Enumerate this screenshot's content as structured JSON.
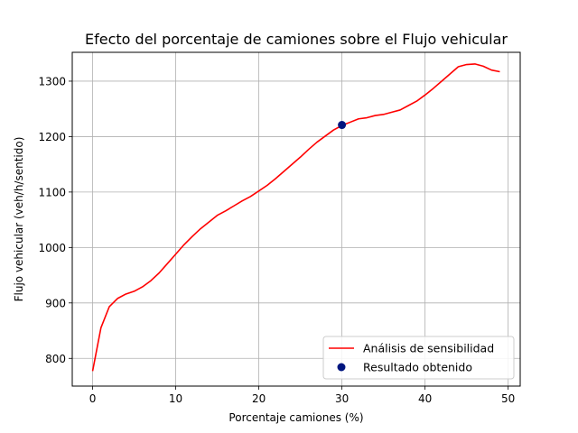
{
  "chart_data": {
    "type": "line",
    "title": "Efecto del porcentaje de camiones sobre el Flujo vehicular",
    "xlabel": "Porcentaje camiones (%)",
    "ylabel": "Flujo vehicular (veh/h/sentido)",
    "xlim": [
      -2.45,
      51.45
    ],
    "ylim": [
      750,
      1352
    ],
    "xticks": [
      0,
      10,
      20,
      30,
      40,
      50
    ],
    "yticks": [
      800,
      900,
      1000,
      1100,
      1200,
      1300
    ],
    "grid": true,
    "legend_position": "lower-right",
    "series": [
      {
        "name": "Análisis de sensibilidad",
        "kind": "line",
        "color": "#ff0000",
        "x": [
          0,
          1,
          2,
          3,
          4,
          5,
          6,
          7,
          8,
          9,
          10,
          11,
          12,
          13,
          14,
          15,
          16,
          17,
          18,
          19,
          20,
          21,
          22,
          23,
          24,
          25,
          26,
          27,
          28,
          29,
          30,
          31,
          32,
          33,
          34,
          35,
          36,
          37,
          38,
          39,
          40,
          41,
          42,
          43,
          44,
          45,
          46,
          47,
          48,
          49
        ],
        "y": [
          777,
          855,
          893,
          908,
          916,
          921,
          929,
          940,
          954,
          971,
          988,
          1005,
          1020,
          1034,
          1046,
          1058,
          1066,
          1075,
          1084,
          1092,
          1102,
          1112,
          1124,
          1137,
          1150,
          1163,
          1177,
          1190,
          1201,
          1212,
          1220,
          1226,
          1232,
          1234,
          1238,
          1240,
          1244,
          1248,
          1256,
          1264,
          1275,
          1287,
          1300,
          1313,
          1326,
          1330,
          1331,
          1327,
          1320,
          1317
        ]
      },
      {
        "name": "Resultado obtenido",
        "kind": "scatter",
        "color": "#00157f",
        "x": [
          30
        ],
        "y": [
          1221
        ]
      }
    ]
  }
}
